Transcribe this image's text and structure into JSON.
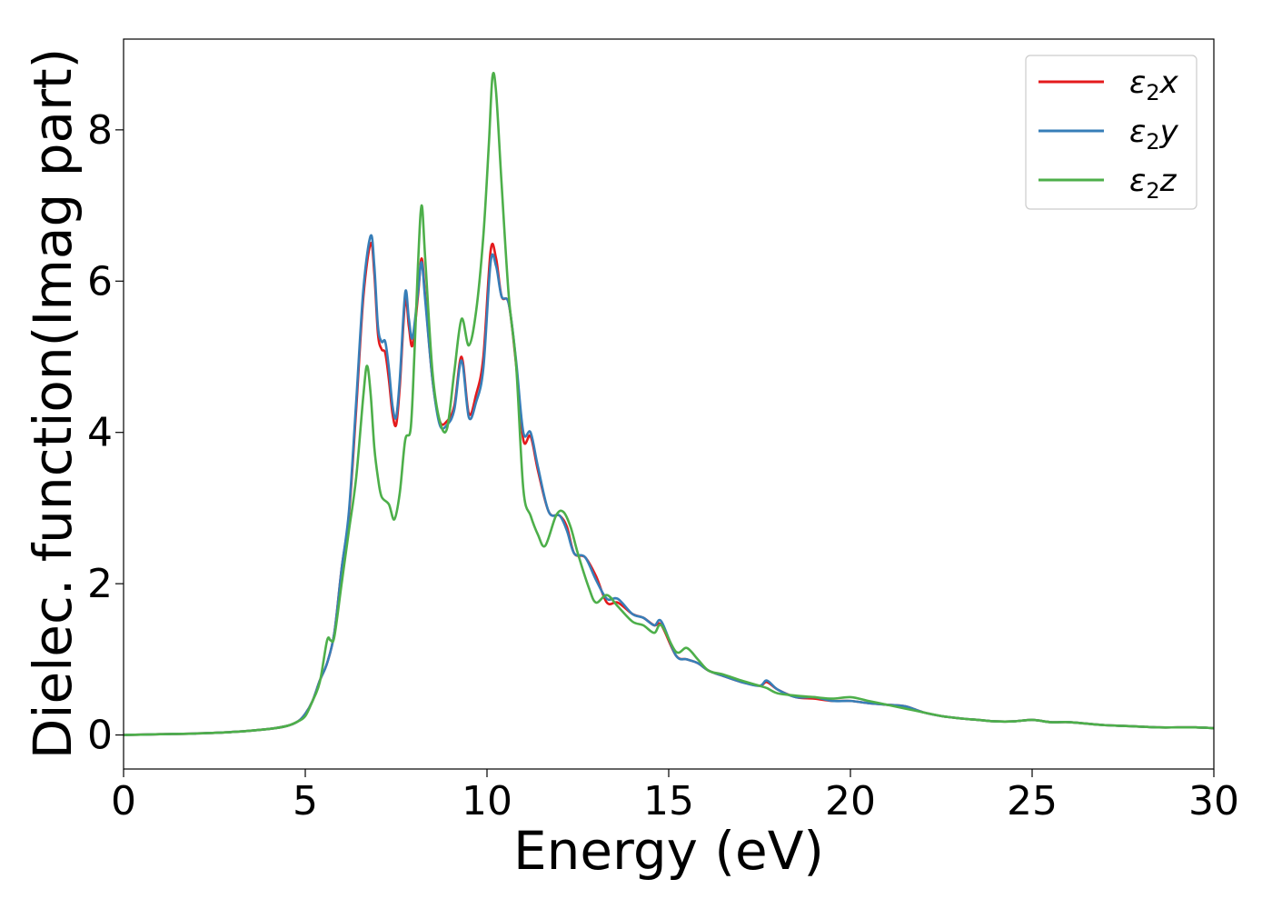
{
  "chart_data": {
    "type": "line",
    "xlabel": "Energy (eV)",
    "ylabel": "Dielec. function(Imag part)",
    "xlim": [
      0,
      30
    ],
    "ylim": [
      -0.45,
      9.2
    ],
    "xticks": [
      0,
      5,
      10,
      15,
      20,
      25,
      30
    ],
    "yticks": [
      0,
      2,
      4,
      6,
      8
    ],
    "grid": false,
    "legend_position": "top-right",
    "series": [
      {
        "name": "ε₂x",
        "legend_base": "ε",
        "legend_sub": "2",
        "legend_suffix": "x",
        "color": "#e41a1c",
        "points": [
          [
            0,
            0.0
          ],
          [
            1,
            0.01
          ],
          [
            2,
            0.02
          ],
          [
            3,
            0.04
          ],
          [
            4,
            0.08
          ],
          [
            4.5,
            0.12
          ],
          [
            4.8,
            0.18
          ],
          [
            5.0,
            0.28
          ],
          [
            5.2,
            0.45
          ],
          [
            5.4,
            0.72
          ],
          [
            5.6,
            0.95
          ],
          [
            5.8,
            1.35
          ],
          [
            6.0,
            2.2
          ],
          [
            6.2,
            2.9
          ],
          [
            6.4,
            4.3
          ],
          [
            6.6,
            5.8
          ],
          [
            6.8,
            6.5
          ],
          [
            6.9,
            6.1
          ],
          [
            7.0,
            5.3
          ],
          [
            7.1,
            5.1
          ],
          [
            7.2,
            5.05
          ],
          [
            7.3,
            4.7
          ],
          [
            7.4,
            4.25
          ],
          [
            7.5,
            4.1
          ],
          [
            7.6,
            4.6
          ],
          [
            7.75,
            5.75
          ],
          [
            7.85,
            5.4
          ],
          [
            7.95,
            5.15
          ],
          [
            8.1,
            5.8
          ],
          [
            8.2,
            6.3
          ],
          [
            8.3,
            5.8
          ],
          [
            8.5,
            4.7
          ],
          [
            8.7,
            4.15
          ],
          [
            8.9,
            4.15
          ],
          [
            9.1,
            4.35
          ],
          [
            9.3,
            5.0
          ],
          [
            9.5,
            4.25
          ],
          [
            9.7,
            4.5
          ],
          [
            9.9,
            5.0
          ],
          [
            10.1,
            6.4
          ],
          [
            10.25,
            6.3
          ],
          [
            10.4,
            5.8
          ],
          [
            10.6,
            5.7
          ],
          [
            10.8,
            4.9
          ],
          [
            11.0,
            3.9
          ],
          [
            11.2,
            3.95
          ],
          [
            11.4,
            3.5
          ],
          [
            11.7,
            2.95
          ],
          [
            12.0,
            2.9
          ],
          [
            12.2,
            2.75
          ],
          [
            12.4,
            2.4
          ],
          [
            12.7,
            2.35
          ],
          [
            13.0,
            2.1
          ],
          [
            13.3,
            1.75
          ],
          [
            13.6,
            1.75
          ],
          [
            14.0,
            1.6
          ],
          [
            14.3,
            1.55
          ],
          [
            14.6,
            1.45
          ],
          [
            14.8,
            1.45
          ],
          [
            15.2,
            1.05
          ],
          [
            15.5,
            1.0
          ],
          [
            15.8,
            0.95
          ],
          [
            16.1,
            0.85
          ],
          [
            16.5,
            0.78
          ],
          [
            17.0,
            0.7
          ],
          [
            17.5,
            0.65
          ],
          [
            17.7,
            0.7
          ],
          [
            18.0,
            0.6
          ],
          [
            18.5,
            0.5
          ],
          [
            19.0,
            0.48
          ],
          [
            19.5,
            0.45
          ],
          [
            20.0,
            0.45
          ],
          [
            20.5,
            0.42
          ],
          [
            21.0,
            0.4
          ],
          [
            21.5,
            0.38
          ],
          [
            22.0,
            0.3
          ],
          [
            22.5,
            0.25
          ],
          [
            23.0,
            0.22
          ],
          [
            23.5,
            0.2
          ],
          [
            24.0,
            0.18
          ],
          [
            24.5,
            0.18
          ],
          [
            25.0,
            0.2
          ],
          [
            25.5,
            0.17
          ],
          [
            26.0,
            0.17
          ],
          [
            26.5,
            0.15
          ],
          [
            27.0,
            0.13
          ],
          [
            27.5,
            0.12
          ],
          [
            28.0,
            0.11
          ],
          [
            28.5,
            0.1
          ],
          [
            29.0,
            0.1
          ],
          [
            29.5,
            0.1
          ],
          [
            30.0,
            0.09
          ]
        ]
      },
      {
        "name": "ε₂y",
        "legend_base": "ε",
        "legend_sub": "2",
        "legend_suffix": "y",
        "color": "#377eb8",
        "points": [
          [
            0,
            0.0
          ],
          [
            1,
            0.01
          ],
          [
            2,
            0.02
          ],
          [
            3,
            0.04
          ],
          [
            4,
            0.08
          ],
          [
            4.5,
            0.12
          ],
          [
            4.8,
            0.18
          ],
          [
            5.0,
            0.28
          ],
          [
            5.2,
            0.45
          ],
          [
            5.4,
            0.72
          ],
          [
            5.6,
            0.95
          ],
          [
            5.8,
            1.35
          ],
          [
            6.0,
            2.2
          ],
          [
            6.2,
            2.95
          ],
          [
            6.4,
            4.4
          ],
          [
            6.6,
            5.9
          ],
          [
            6.8,
            6.6
          ],
          [
            6.9,
            6.2
          ],
          [
            7.0,
            5.4
          ],
          [
            7.1,
            5.2
          ],
          [
            7.2,
            5.2
          ],
          [
            7.3,
            4.85
          ],
          [
            7.4,
            4.35
          ],
          [
            7.5,
            4.2
          ],
          [
            7.6,
            4.7
          ],
          [
            7.75,
            5.85
          ],
          [
            7.85,
            5.5
          ],
          [
            7.95,
            5.25
          ],
          [
            8.1,
            5.85
          ],
          [
            8.2,
            6.25
          ],
          [
            8.3,
            5.75
          ],
          [
            8.5,
            4.7
          ],
          [
            8.7,
            4.1
          ],
          [
            8.9,
            4.1
          ],
          [
            9.1,
            4.3
          ],
          [
            9.3,
            4.95
          ],
          [
            9.5,
            4.2
          ],
          [
            9.7,
            4.4
          ],
          [
            9.9,
            4.85
          ],
          [
            10.1,
            6.25
          ],
          [
            10.25,
            6.2
          ],
          [
            10.4,
            5.8
          ],
          [
            10.6,
            5.7
          ],
          [
            10.8,
            4.95
          ],
          [
            11.0,
            4.0
          ],
          [
            11.2,
            4.0
          ],
          [
            11.4,
            3.55
          ],
          [
            11.7,
            2.95
          ],
          [
            12.0,
            2.9
          ],
          [
            12.2,
            2.7
          ],
          [
            12.4,
            2.4
          ],
          [
            12.7,
            2.35
          ],
          [
            13.0,
            2.05
          ],
          [
            13.3,
            1.8
          ],
          [
            13.6,
            1.8
          ],
          [
            14.0,
            1.6
          ],
          [
            14.3,
            1.55
          ],
          [
            14.6,
            1.45
          ],
          [
            14.8,
            1.5
          ],
          [
            15.2,
            1.05
          ],
          [
            15.5,
            1.0
          ],
          [
            15.8,
            0.95
          ],
          [
            16.1,
            0.85
          ],
          [
            16.5,
            0.78
          ],
          [
            17.0,
            0.7
          ],
          [
            17.5,
            0.65
          ],
          [
            17.7,
            0.72
          ],
          [
            18.0,
            0.6
          ],
          [
            18.5,
            0.5
          ],
          [
            19.0,
            0.5
          ],
          [
            19.5,
            0.45
          ],
          [
            20.0,
            0.45
          ],
          [
            20.5,
            0.42
          ],
          [
            21.0,
            0.4
          ],
          [
            21.5,
            0.38
          ],
          [
            22.0,
            0.3
          ],
          [
            22.5,
            0.25
          ],
          [
            23.0,
            0.22
          ],
          [
            23.5,
            0.2
          ],
          [
            24.0,
            0.18
          ],
          [
            24.5,
            0.18
          ],
          [
            25.0,
            0.2
          ],
          [
            25.5,
            0.17
          ],
          [
            26.0,
            0.17
          ],
          [
            26.5,
            0.15
          ],
          [
            27.0,
            0.13
          ],
          [
            27.5,
            0.12
          ],
          [
            28.0,
            0.11
          ],
          [
            28.5,
            0.1
          ],
          [
            29.0,
            0.1
          ],
          [
            29.5,
            0.1
          ],
          [
            30.0,
            0.09
          ]
        ]
      },
      {
        "name": "ε₂z",
        "legend_base": "ε",
        "legend_sub": "2",
        "legend_suffix": "z",
        "color": "#4daf4a",
        "points": [
          [
            0,
            0.0
          ],
          [
            1,
            0.01
          ],
          [
            2,
            0.02
          ],
          [
            3,
            0.04
          ],
          [
            4,
            0.08
          ],
          [
            4.5,
            0.12
          ],
          [
            4.8,
            0.18
          ],
          [
            5.0,
            0.25
          ],
          [
            5.2,
            0.45
          ],
          [
            5.4,
            0.7
          ],
          [
            5.6,
            1.25
          ],
          [
            5.7,
            1.25
          ],
          [
            5.8,
            1.3
          ],
          [
            6.0,
            2.0
          ],
          [
            6.2,
            2.7
          ],
          [
            6.4,
            3.4
          ],
          [
            6.6,
            4.5
          ],
          [
            6.7,
            4.88
          ],
          [
            6.8,
            4.5
          ],
          [
            6.9,
            3.8
          ],
          [
            7.0,
            3.4
          ],
          [
            7.1,
            3.15
          ],
          [
            7.3,
            3.05
          ],
          [
            7.45,
            2.85
          ],
          [
            7.6,
            3.2
          ],
          [
            7.75,
            3.9
          ],
          [
            7.9,
            4.05
          ],
          [
            8.0,
            5.0
          ],
          [
            8.1,
            6.2
          ],
          [
            8.2,
            7.0
          ],
          [
            8.3,
            6.3
          ],
          [
            8.5,
            4.8
          ],
          [
            8.7,
            4.15
          ],
          [
            8.9,
            4.05
          ],
          [
            9.1,
            4.8
          ],
          [
            9.3,
            5.5
          ],
          [
            9.5,
            5.15
          ],
          [
            9.7,
            5.6
          ],
          [
            9.9,
            6.6
          ],
          [
            10.05,
            7.8
          ],
          [
            10.15,
            8.7
          ],
          [
            10.25,
            8.5
          ],
          [
            10.4,
            7.3
          ],
          [
            10.6,
            5.8
          ],
          [
            10.8,
            4.9
          ],
          [
            11.0,
            3.25
          ],
          [
            11.2,
            2.9
          ],
          [
            11.4,
            2.65
          ],
          [
            11.6,
            2.5
          ],
          [
            11.9,
            2.9
          ],
          [
            12.1,
            2.95
          ],
          [
            12.3,
            2.75
          ],
          [
            12.5,
            2.4
          ],
          [
            12.8,
            1.95
          ],
          [
            13.0,
            1.75
          ],
          [
            13.3,
            1.85
          ],
          [
            13.6,
            1.7
          ],
          [
            14.0,
            1.5
          ],
          [
            14.3,
            1.45
          ],
          [
            14.6,
            1.35
          ],
          [
            14.8,
            1.45
          ],
          [
            15.2,
            1.1
          ],
          [
            15.5,
            1.15
          ],
          [
            15.8,
            1.0
          ],
          [
            16.1,
            0.85
          ],
          [
            16.5,
            0.8
          ],
          [
            17.0,
            0.72
          ],
          [
            17.5,
            0.65
          ],
          [
            17.7,
            0.62
          ],
          [
            18.0,
            0.55
          ],
          [
            18.5,
            0.52
          ],
          [
            19.0,
            0.5
          ],
          [
            19.5,
            0.48
          ],
          [
            20.0,
            0.5
          ],
          [
            20.5,
            0.45
          ],
          [
            21.0,
            0.4
          ],
          [
            21.5,
            0.35
          ],
          [
            22.0,
            0.3
          ],
          [
            22.5,
            0.25
          ],
          [
            23.0,
            0.22
          ],
          [
            23.5,
            0.2
          ],
          [
            24.0,
            0.18
          ],
          [
            24.5,
            0.18
          ],
          [
            25.0,
            0.2
          ],
          [
            25.5,
            0.17
          ],
          [
            26.0,
            0.17
          ],
          [
            26.5,
            0.15
          ],
          [
            27.0,
            0.13
          ],
          [
            27.5,
            0.12
          ],
          [
            28.0,
            0.11
          ],
          [
            28.5,
            0.1
          ],
          [
            29.0,
            0.1
          ],
          [
            29.5,
            0.1
          ],
          [
            30.0,
            0.09
          ]
        ]
      }
    ]
  }
}
